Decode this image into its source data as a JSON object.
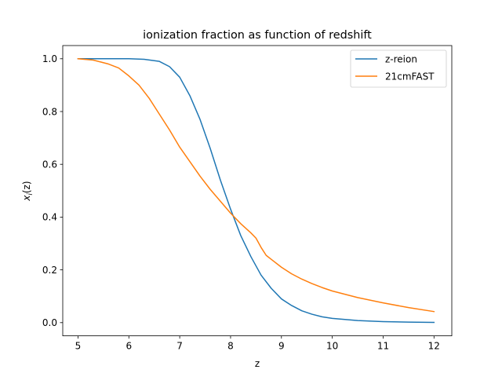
{
  "chart_data": {
    "type": "line",
    "title": "ionization fraction as function of redshift",
    "xlabel": "z",
    "ylabel_main": "x",
    "ylabel_sub": "i",
    "ylabel_tail": "(z)",
    "xlim": [
      4.7,
      12.35
    ],
    "ylim": [
      -0.05,
      1.05
    ],
    "xticks": [
      5,
      6,
      7,
      8,
      9,
      10,
      11,
      12
    ],
    "xtick_labels": [
      "5",
      "6",
      "7",
      "8",
      "9",
      "10",
      "11",
      "12"
    ],
    "yticks": [
      0.0,
      0.2,
      0.4,
      0.6,
      0.8,
      1.0
    ],
    "ytick_labels": [
      "0.0",
      "0.2",
      "0.4",
      "0.6",
      "0.8",
      "1.0"
    ],
    "grid": false,
    "legend": "top-right",
    "series": [
      {
        "name": "z-reion",
        "color": "#1f77b4",
        "x": [
          5.0,
          5.5,
          6.0,
          6.3,
          6.6,
          6.8,
          7.0,
          7.2,
          7.4,
          7.6,
          7.8,
          8.0,
          8.2,
          8.4,
          8.6,
          8.8,
          9.0,
          9.2,
          9.4,
          9.6,
          9.8,
          10.0,
          10.5,
          11.0,
          11.5,
          12.0
        ],
        "y": [
          1.0,
          1.0,
          1.0,
          0.998,
          0.99,
          0.97,
          0.93,
          0.86,
          0.77,
          0.66,
          0.54,
          0.43,
          0.33,
          0.25,
          0.18,
          0.13,
          0.09,
          0.065,
          0.045,
          0.032,
          0.022,
          0.016,
          0.008,
          0.004,
          0.002,
          0.001
        ]
      },
      {
        "name": "21cmFAST",
        "color": "#ff7f0e",
        "x": [
          5.0,
          5.3,
          5.6,
          5.8,
          6.0,
          6.2,
          6.4,
          6.6,
          6.8,
          7.0,
          7.2,
          7.4,
          7.6,
          7.8,
          8.0,
          8.2,
          8.4,
          8.5,
          8.6,
          8.7,
          8.8,
          9.0,
          9.2,
          9.4,
          9.6,
          9.8,
          10.0,
          10.5,
          11.0,
          11.5,
          12.0
        ],
        "y": [
          1.0,
          0.995,
          0.98,
          0.965,
          0.935,
          0.9,
          0.85,
          0.79,
          0.73,
          0.665,
          0.61,
          0.555,
          0.505,
          0.46,
          0.415,
          0.375,
          0.34,
          0.32,
          0.285,
          0.255,
          0.24,
          0.21,
          0.185,
          0.165,
          0.148,
          0.133,
          0.12,
          0.095,
          0.075,
          0.057,
          0.042
        ]
      }
    ]
  }
}
